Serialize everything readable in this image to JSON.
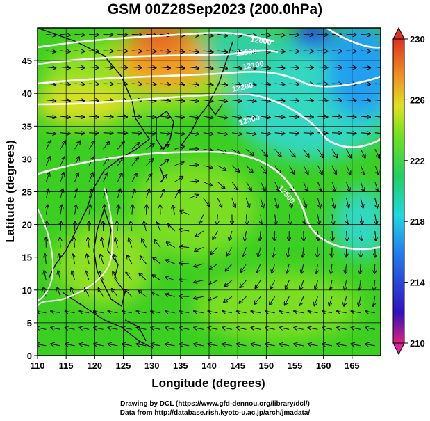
{
  "title": "GSM 00Z28Sep2023 (200.0hPa)",
  "xlabel": "Longitude (degrees)",
  "ylabel": "Latitude (degrees)",
  "credits": [
    "Drawing by DCL (https://www.gfd-dennou.org/library/dcl/)",
    "Data from http://database.rish.kyoto-u.ac.jp/arch/jmadata/"
  ],
  "map": {
    "lon_range": [
      110,
      170
    ],
    "lat_range": [
      0,
      50
    ],
    "x_ticks": [
      "110",
      "115",
      "120",
      "125",
      "130",
      "135",
      "140",
      "145",
      "150",
      "155",
      "160",
      "165"
    ],
    "y_ticks": [
      "0",
      "5",
      "10",
      "15",
      "20",
      "25",
      "30",
      "35",
      "40",
      "45"
    ],
    "grid": true
  },
  "colorbar": {
    "range": [
      210,
      230
    ],
    "tick_labels": [
      "230",
      "226",
      "222",
      "218",
      "214",
      "210"
    ],
    "colors": [
      "#e0207a",
      "#3010c0",
      "#2080f0",
      "#20d8e0",
      "#20d060",
      "#70e020",
      "#e0e020",
      "#f09020",
      "#e03020"
    ]
  },
  "contour_labels": [
    "12500",
    "12300",
    "12200",
    "12100",
    "12000",
    "11900"
  ],
  "field_colors": {
    "green": "#3bcf22",
    "yellowgreen": "#8ee020",
    "orange": "#f0a020",
    "cyan": "#30d8c0",
    "blue": "#2040e0"
  }
}
